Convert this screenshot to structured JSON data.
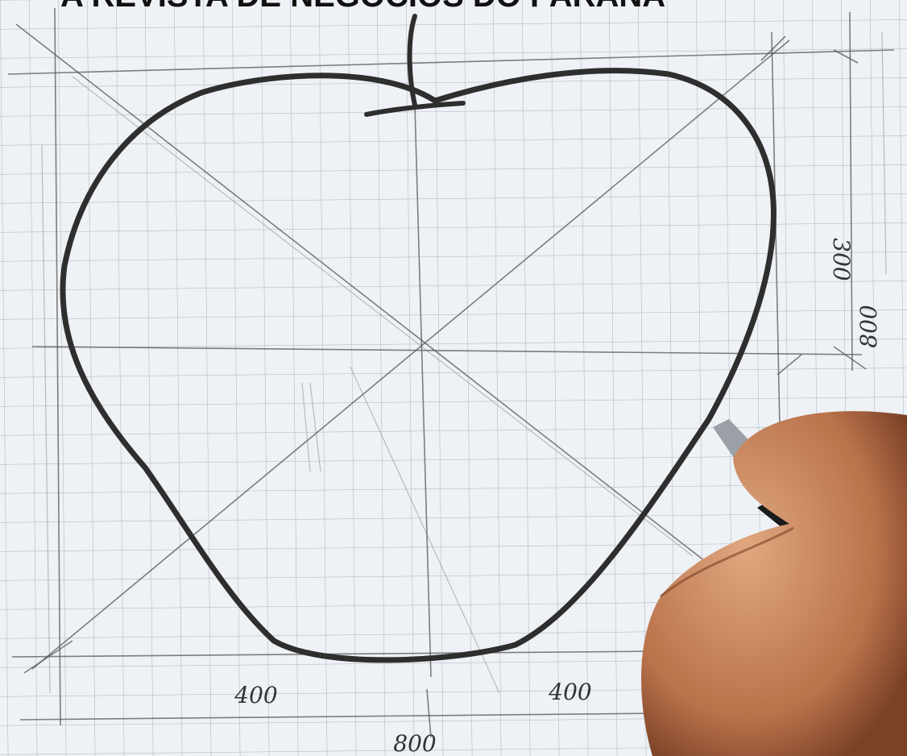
{
  "header": {
    "title": "A REVISTA DE NEGÓCIOS DO PARANÁ"
  },
  "annotations": {
    "left_half": "400",
    "right_half": "400",
    "width": "800",
    "top_offset": "300",
    "height": "800"
  }
}
